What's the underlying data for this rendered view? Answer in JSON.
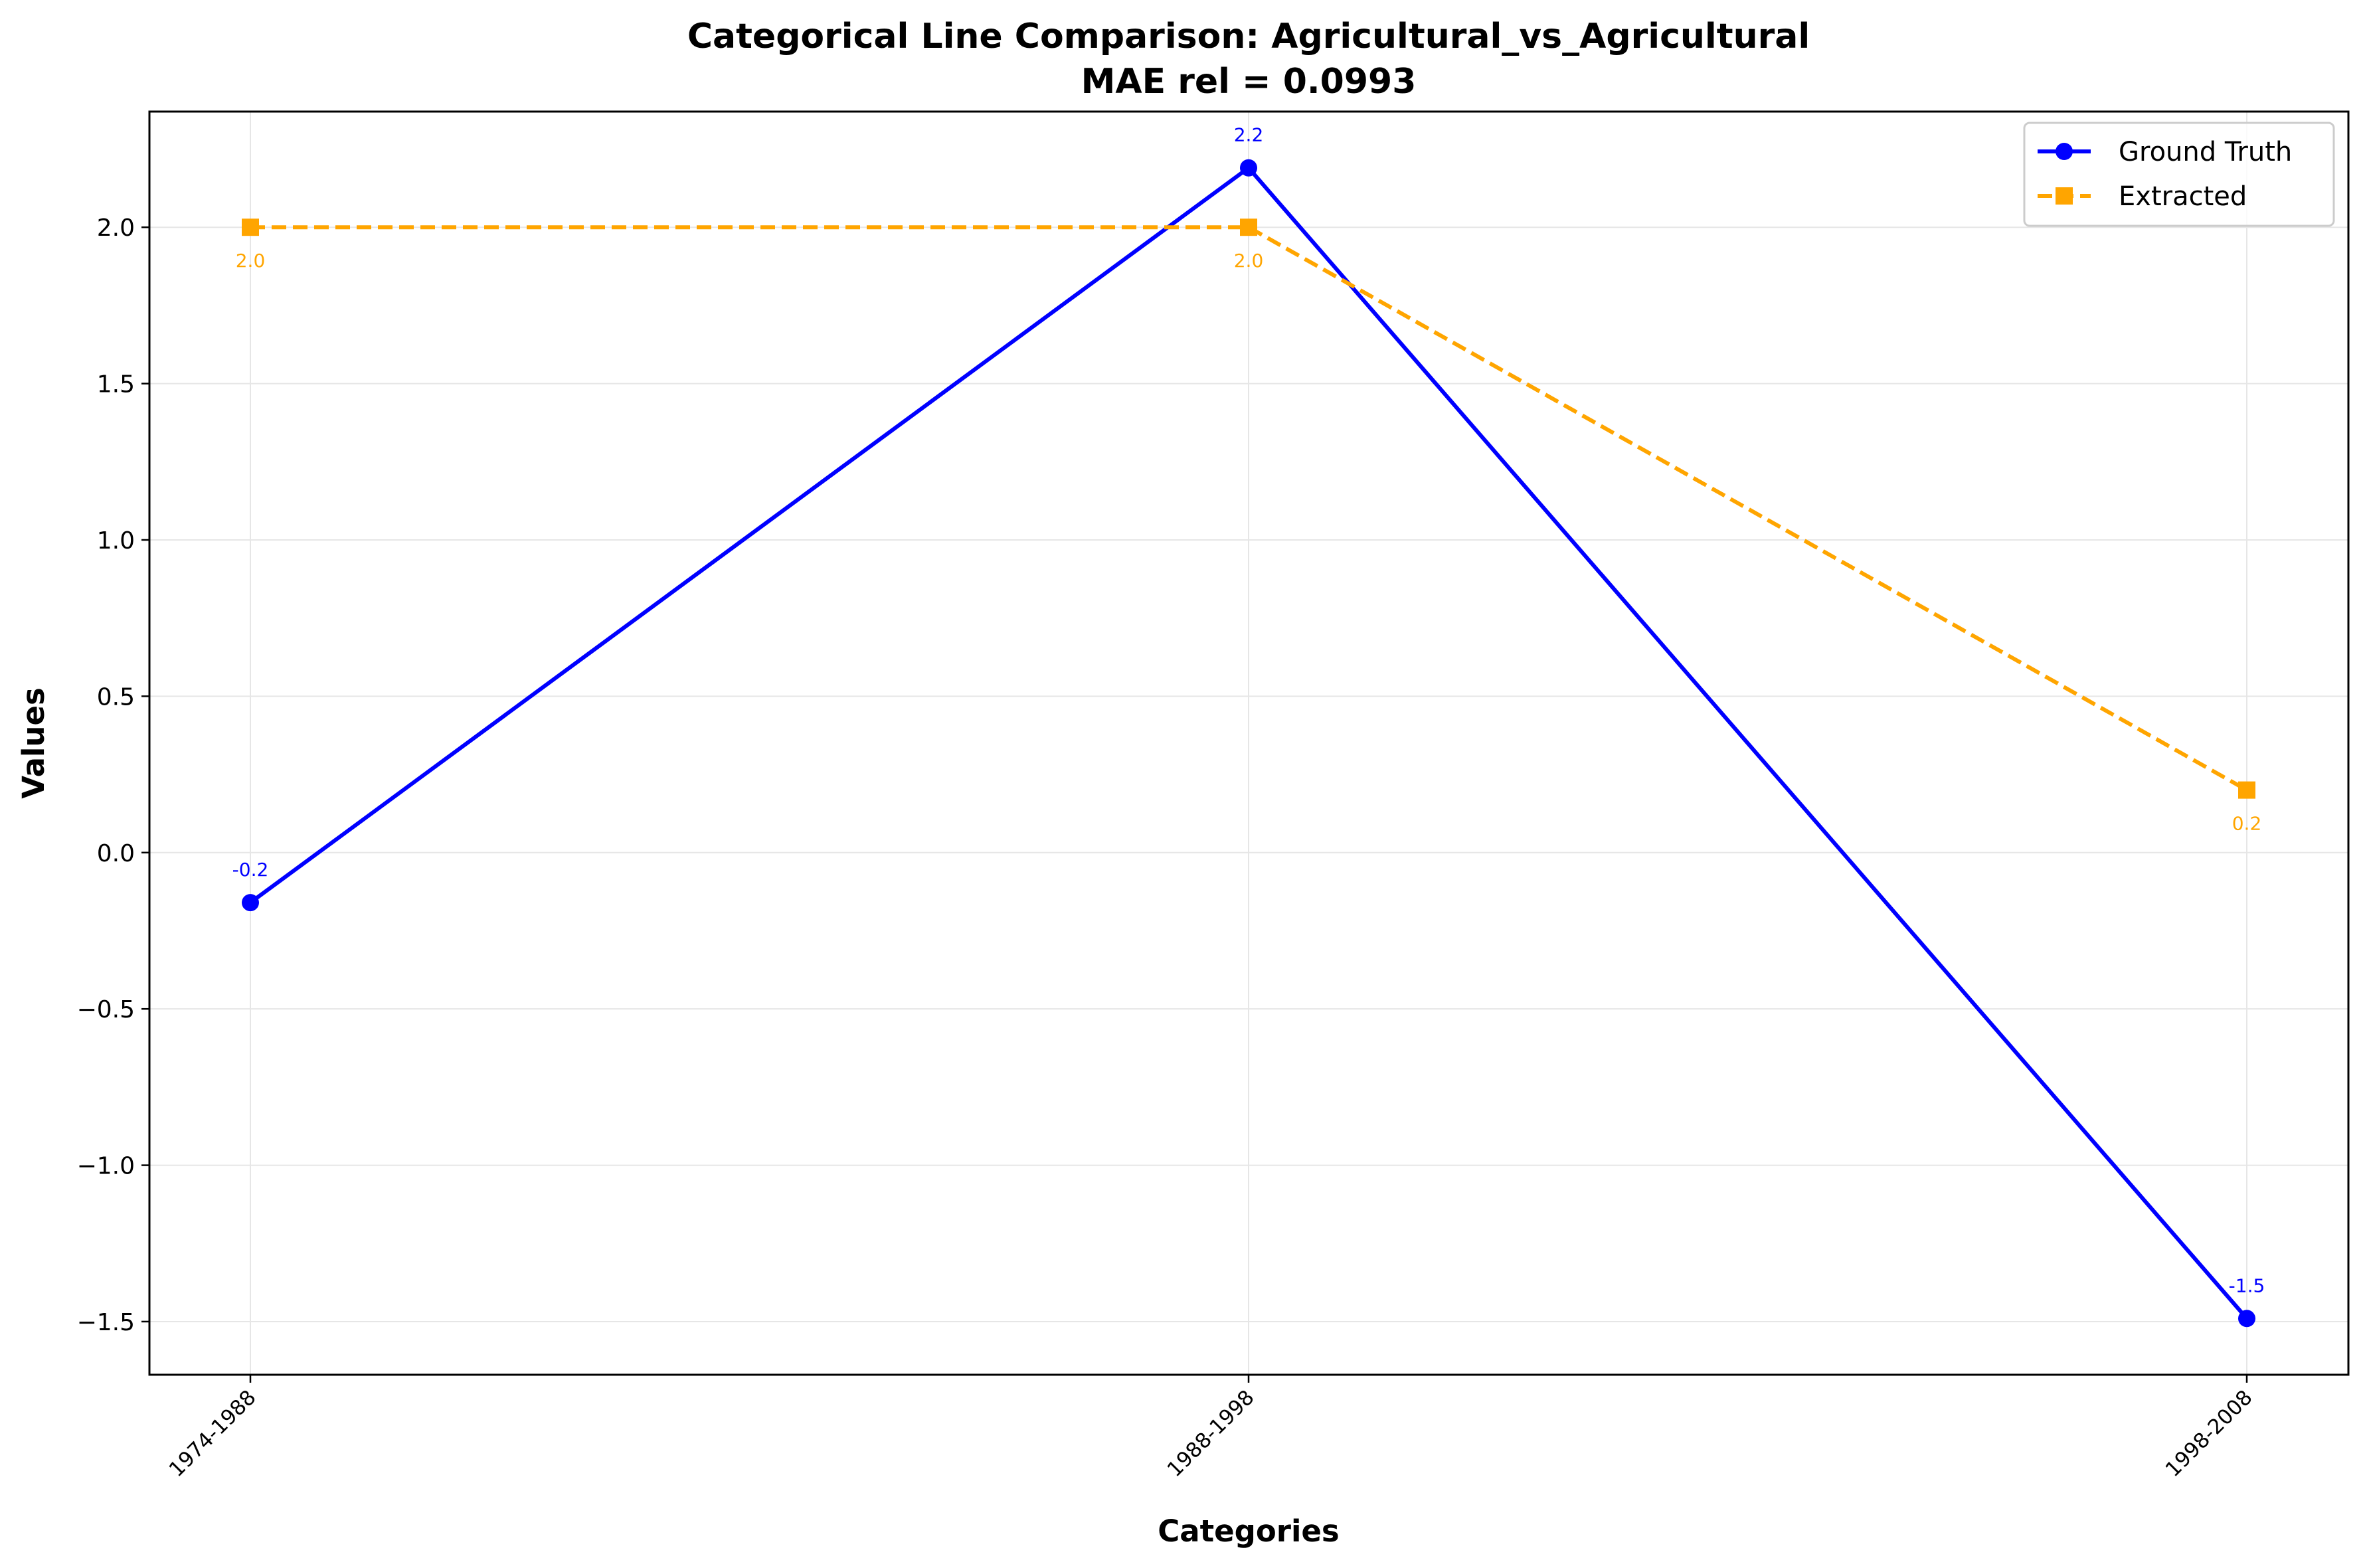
{
  "chart_data": {
    "type": "line",
    "title": "Categorical Line Comparison: Agricultural_vs_Agricultural",
    "subtitle": "MAE rel = 0.0993",
    "xlabel": "Categories",
    "ylabel": "Values",
    "categories": [
      "1974-1988",
      "1988-1998",
      "1998-2008"
    ],
    "ylim": [
      -1.67,
      2.37
    ],
    "yticks": [
      -1.5,
      -1.0,
      -0.5,
      0.0,
      0.5,
      1.0,
      1.5,
      2.0
    ],
    "ytick_labels": [
      "−1.5",
      "−1.0",
      "−0.5",
      "0.0",
      "0.5",
      "1.0",
      "1.5",
      "2.0"
    ],
    "grid": true,
    "legend_position": "top-right",
    "series": [
      {
        "name": "Ground Truth",
        "values": [
          -0.16,
          2.19,
          -1.49
        ],
        "labels": [
          "-0.2",
          "2.2",
          "-1.5"
        ],
        "color": "#0000ff",
        "line_style": "solid",
        "marker": "circle",
        "label_position": "above"
      },
      {
        "name": "Extracted",
        "values": [
          2.0,
          2.0,
          0.2
        ],
        "labels": [
          "2.0",
          "2.0",
          "0.2"
        ],
        "color": "#ffa500",
        "line_style": "dashed",
        "marker": "square",
        "label_position": "below"
      }
    ]
  }
}
